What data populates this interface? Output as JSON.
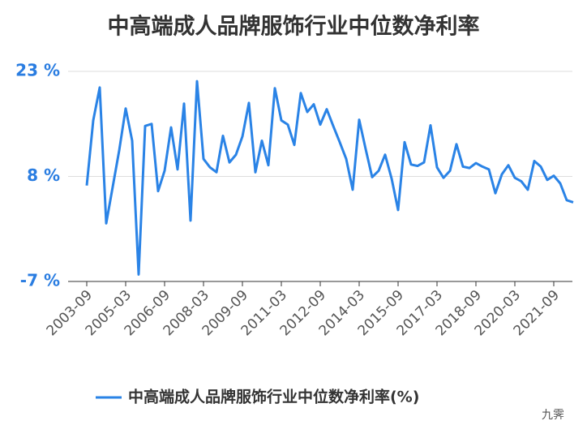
{
  "chart_data": {
    "type": "line",
    "title": "中高端成人品牌服饰行业中位数净利率",
    "categories": [
      "2003-09",
      null,
      null,
      null,
      null,
      null,
      "2005-03",
      null,
      null,
      null,
      null,
      null,
      "2006-09",
      null,
      null,
      null,
      null,
      null,
      "2008-03",
      null,
      null,
      null,
      null,
      null,
      "2009-09",
      null,
      null,
      null,
      null,
      null,
      "2011-03",
      null,
      null,
      null,
      null,
      null,
      "2012-09",
      null,
      null,
      null,
      null,
      null,
      "2014-03",
      null,
      null,
      null,
      null,
      null,
      "2015-09",
      null,
      null,
      null,
      null,
      null,
      "2017-03",
      null,
      null,
      null,
      null,
      null,
      "2018-09",
      null,
      null,
      null,
      null,
      null,
      "2020-03",
      null,
      null,
      null,
      null,
      null,
      "2021-09",
      null,
      null,
      null
    ],
    "series": [
      {
        "name": "中高端成人品牌服饰行业中位数净利率(%)",
        "color": "#2a83e6",
        "values": [
          6.7,
          16.0,
          20.7,
          1.3,
          6.5,
          11.7,
          17.7,
          13.1,
          -6.0,
          15.2,
          15.5,
          5.9,
          8.8,
          15.0,
          9.0,
          18.4,
          1.7,
          21.6,
          10.5,
          9.3,
          8.6,
          13.8,
          10.0,
          11.1,
          13.7,
          18.5,
          8.6,
          13.1,
          9.6,
          20.6,
          16.0,
          15.4,
          12.5,
          19.9,
          17.2,
          18.3,
          15.4,
          17.6,
          15.2,
          12.9,
          10.5,
          6.1,
          16.1,
          11.9,
          7.9,
          8.8,
          11.1,
          7.7,
          3.2,
          12.9,
          9.7,
          9.5,
          10.0,
          15.3,
          9.3,
          7.8,
          8.8,
          12.6,
          9.4,
          9.2,
          9.9,
          9.4,
          9.0,
          5.6,
          8.3,
          9.6,
          7.8,
          7.3,
          6.1,
          10.2,
          9.4,
          7.5,
          8.1,
          7.0,
          4.6,
          4.3
        ]
      }
    ],
    "ylim": [
      -7,
      23
    ],
    "yticks": [
      {
        "value": -7,
        "label": "-7 %"
      },
      {
        "value": 8,
        "label": "8 %"
      },
      {
        "value": 23,
        "label": "23 %"
      }
    ],
    "grid": true,
    "legend": "bottom",
    "watermark": "九霁"
  }
}
